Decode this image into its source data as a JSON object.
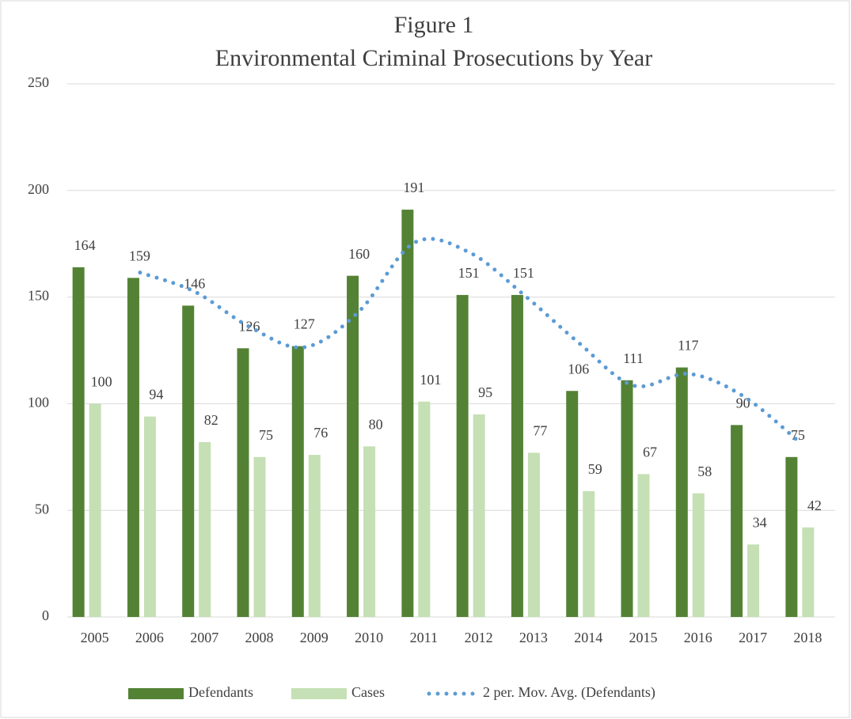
{
  "chart_data": {
    "type": "bar",
    "title": "Figure 1",
    "subtitle": "Environmental Criminal Prosecutions by Year",
    "categories": [
      "2005",
      "2006",
      "2007",
      "2008",
      "2009",
      "2010",
      "2011",
      "2012",
      "2013",
      "2014",
      "2015",
      "2016",
      "2017",
      "2018"
    ],
    "series": [
      {
        "name": "Defendants",
        "color": "#548235",
        "values": [
          164,
          159,
          146,
          126,
          127,
          160,
          191,
          151,
          151,
          106,
          111,
          117,
          90,
          75
        ]
      },
      {
        "name": "Cases",
        "color": "#c5e0b4",
        "values": [
          100,
          94,
          82,
          75,
          76,
          80,
          101,
          95,
          77,
          59,
          67,
          58,
          34,
          42
        ]
      },
      {
        "name": "2 per. Mov. Avg. (Defendants)",
        "color": "#5b9bd5",
        "type": "line",
        "values": [
          null,
          161.5,
          152.5,
          136,
          126.5,
          143.5,
          175.5,
          171,
          151,
          128.5,
          108.5,
          114,
          103.5,
          82.5
        ]
      }
    ],
    "ylim": [
      0,
      250
    ],
    "yticks": [
      0,
      50,
      100,
      150,
      200,
      250
    ],
    "grid": true,
    "legend": "bottom"
  }
}
